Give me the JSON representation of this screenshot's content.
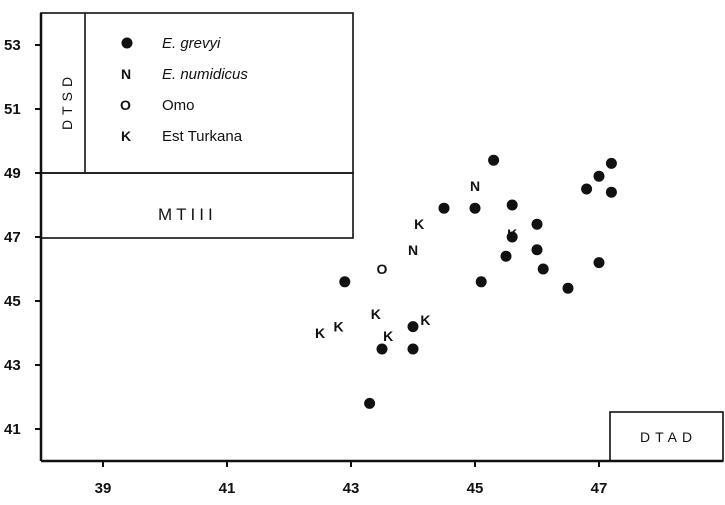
{
  "chart_data": {
    "type": "scatter",
    "title": "",
    "xlabel": "",
    "ylabel": "",
    "xlim": [
      38.0,
      49.0
    ],
    "ylim": [
      40.0,
      54.0
    ],
    "x_ticks": [
      "39",
      "41",
      "43",
      "45",
      "47"
    ],
    "y_ticks": [
      "41",
      "43",
      "45",
      "47",
      "49",
      "51",
      "53"
    ],
    "grid": false,
    "legend_position": "top-left",
    "legend": [
      {
        "symbol": "●",
        "label": "E. grevyi",
        "italic": true
      },
      {
        "symbol": "N",
        "label": "E. numidicus",
        "italic": true
      },
      {
        "symbol": "O",
        "label": "Omo",
        "italic": false
      },
      {
        "symbol": "K",
        "label": "Est Turkana",
        "italic": false
      }
    ],
    "box_labels": {
      "dtsd": "DTSD",
      "mtiii": "MTIII",
      "dtad": "DTAD"
    },
    "series": [
      {
        "name": "E. grevyi",
        "marker": "●",
        "points": [
          [
            42.9,
            45.6
          ],
          [
            43.3,
            41.8
          ],
          [
            43.5,
            43.5
          ],
          [
            44.0,
            43.5
          ],
          [
            44.0,
            44.2
          ],
          [
            44.5,
            47.9
          ],
          [
            45.0,
            47.9
          ],
          [
            45.1,
            45.6
          ],
          [
            45.3,
            49.4
          ],
          [
            45.5,
            46.4
          ],
          [
            45.6,
            47.0
          ],
          [
            45.6,
            48.0
          ],
          [
            46.0,
            47.4
          ],
          [
            46.0,
            46.6
          ],
          [
            46.1,
            46.0
          ],
          [
            46.5,
            45.4
          ],
          [
            46.8,
            48.5
          ],
          [
            47.0,
            48.9
          ],
          [
            47.0,
            46.2
          ],
          [
            47.2,
            49.3
          ],
          [
            47.2,
            48.4
          ]
        ]
      },
      {
        "name": "E. numidicus",
        "marker": "N",
        "points": [
          [
            44.0,
            46.6
          ],
          [
            45.0,
            48.6
          ]
        ]
      },
      {
        "name": "Omo",
        "marker": "O",
        "points": [
          [
            43.5,
            46.0
          ]
        ]
      },
      {
        "name": "Est Turkana",
        "marker": "K",
        "points": [
          [
            42.5,
            44.0
          ],
          [
            42.8,
            44.2
          ],
          [
            43.4,
            44.6
          ],
          [
            43.6,
            43.9
          ],
          [
            44.2,
            44.4
          ],
          [
            44.1,
            47.4
          ],
          [
            45.6,
            47.1
          ]
        ]
      }
    ]
  }
}
